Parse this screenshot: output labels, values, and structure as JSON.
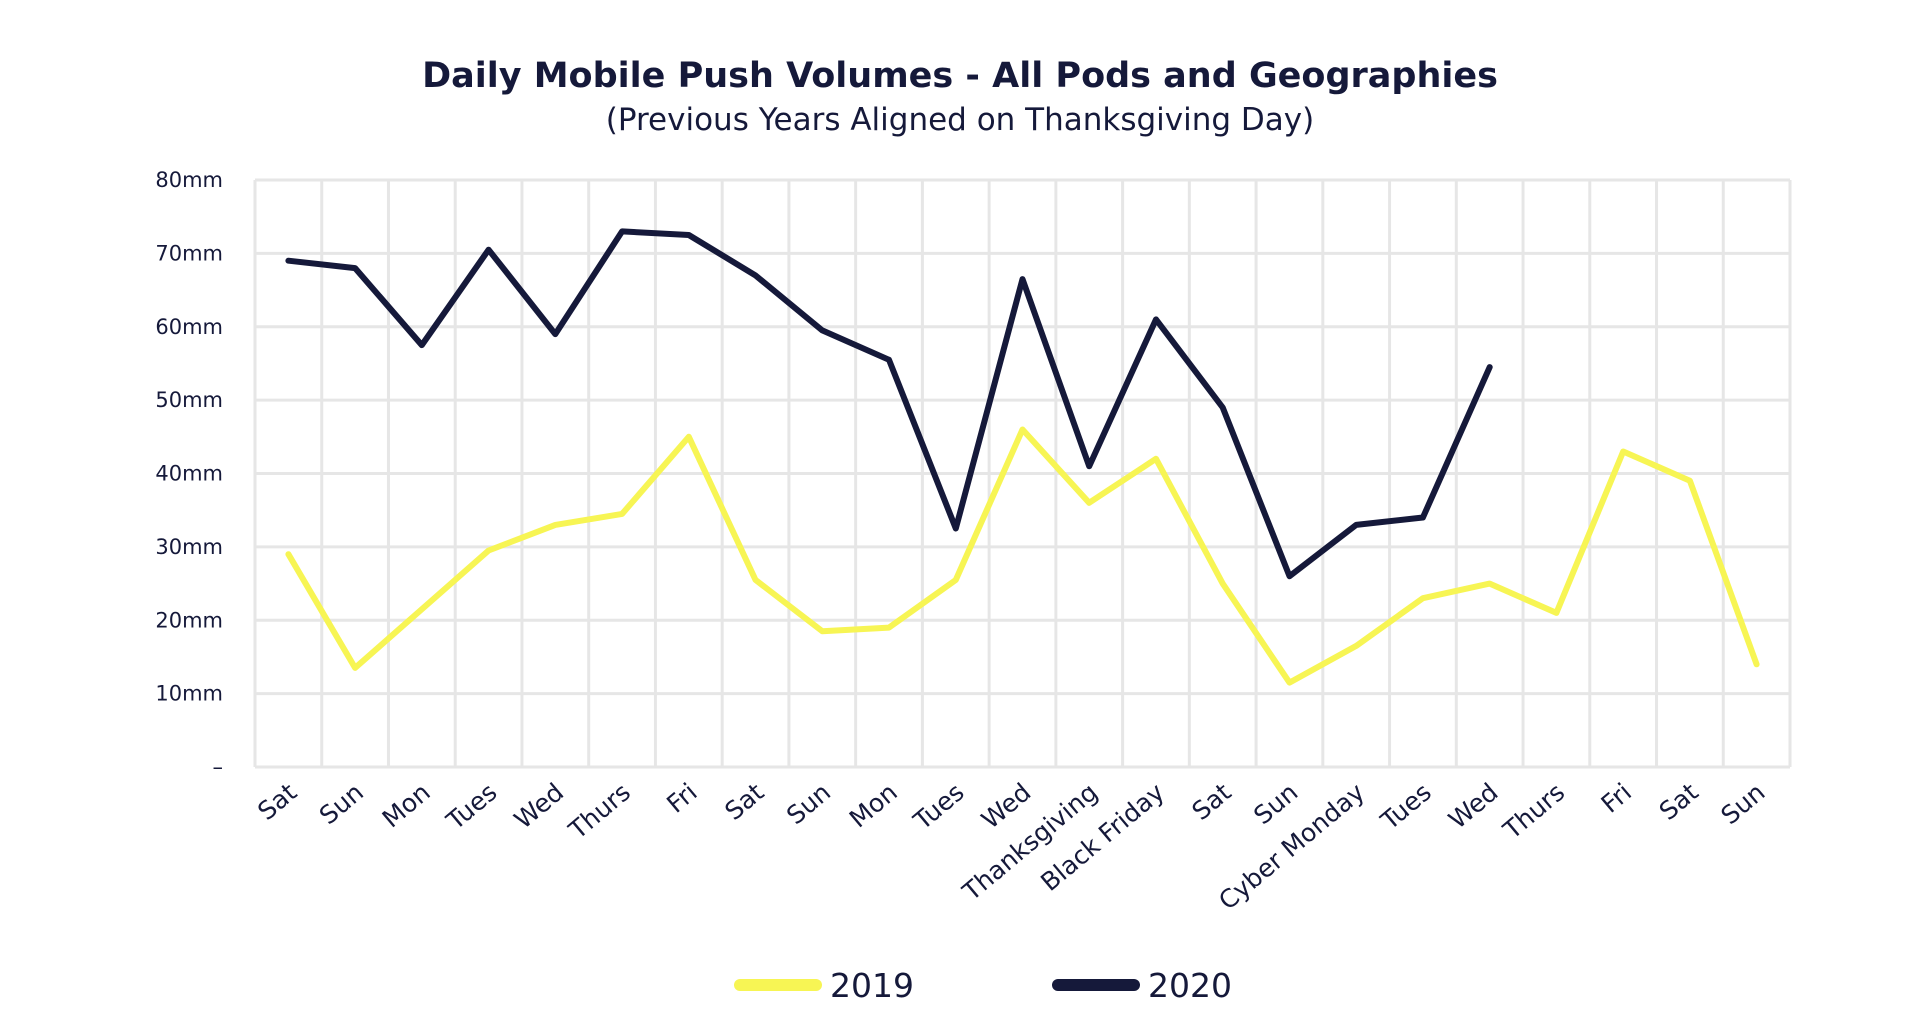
{
  "chart_data": {
    "type": "line",
    "title": "Daily Mobile Push Volumes - All Pods and Geographies",
    "subtitle": "(Previous Years Aligned on Thanksgiving Day)",
    "xlabel": "",
    "ylabel": "",
    "ylim": [
      0,
      80
    ],
    "yticks": [
      {
        "value": 0,
        "label": "–"
      },
      {
        "value": 10,
        "label": "10mm"
      },
      {
        "value": 20,
        "label": "20mm"
      },
      {
        "value": 30,
        "label": "30mm"
      },
      {
        "value": 40,
        "label": "40mm"
      },
      {
        "value": 50,
        "label": "50mm"
      },
      {
        "value": 60,
        "label": "60mm"
      },
      {
        "value": 70,
        "label": "70mm"
      },
      {
        "value": 80,
        "label": "80mm"
      }
    ],
    "categories": [
      "Sat",
      "Sun",
      "Mon",
      "Tues",
      "Wed",
      "Thurs",
      "Fri",
      "Sat",
      "Sun",
      "Mon",
      "Tues",
      "Wed",
      "Thanksgiving",
      "Black Friday",
      "Sat",
      "Sun",
      "Cyber Monday",
      "Tues",
      "Wed",
      "Thurs",
      "Fri",
      "Sat",
      "Sun"
    ],
    "grid": true,
    "legend_position": "bottom-center",
    "series": [
      {
        "name": "2019",
        "color": "#f7f554",
        "values": [
          29,
          13.5,
          21.5,
          29.5,
          33,
          34.5,
          45,
          25.5,
          18.5,
          19,
          25.5,
          46,
          36,
          42,
          25,
          11.5,
          16.5,
          23,
          25,
          21,
          43,
          39,
          14
        ]
      },
      {
        "name": "2020",
        "color": "#15193a",
        "values": [
          69,
          68,
          57.5,
          70.5,
          59,
          73,
          72.5,
          67,
          59.5,
          55.5,
          32.5,
          66.5,
          41,
          61,
          49,
          26,
          33,
          34,
          54.5,
          null,
          null,
          null,
          null
        ]
      }
    ]
  }
}
